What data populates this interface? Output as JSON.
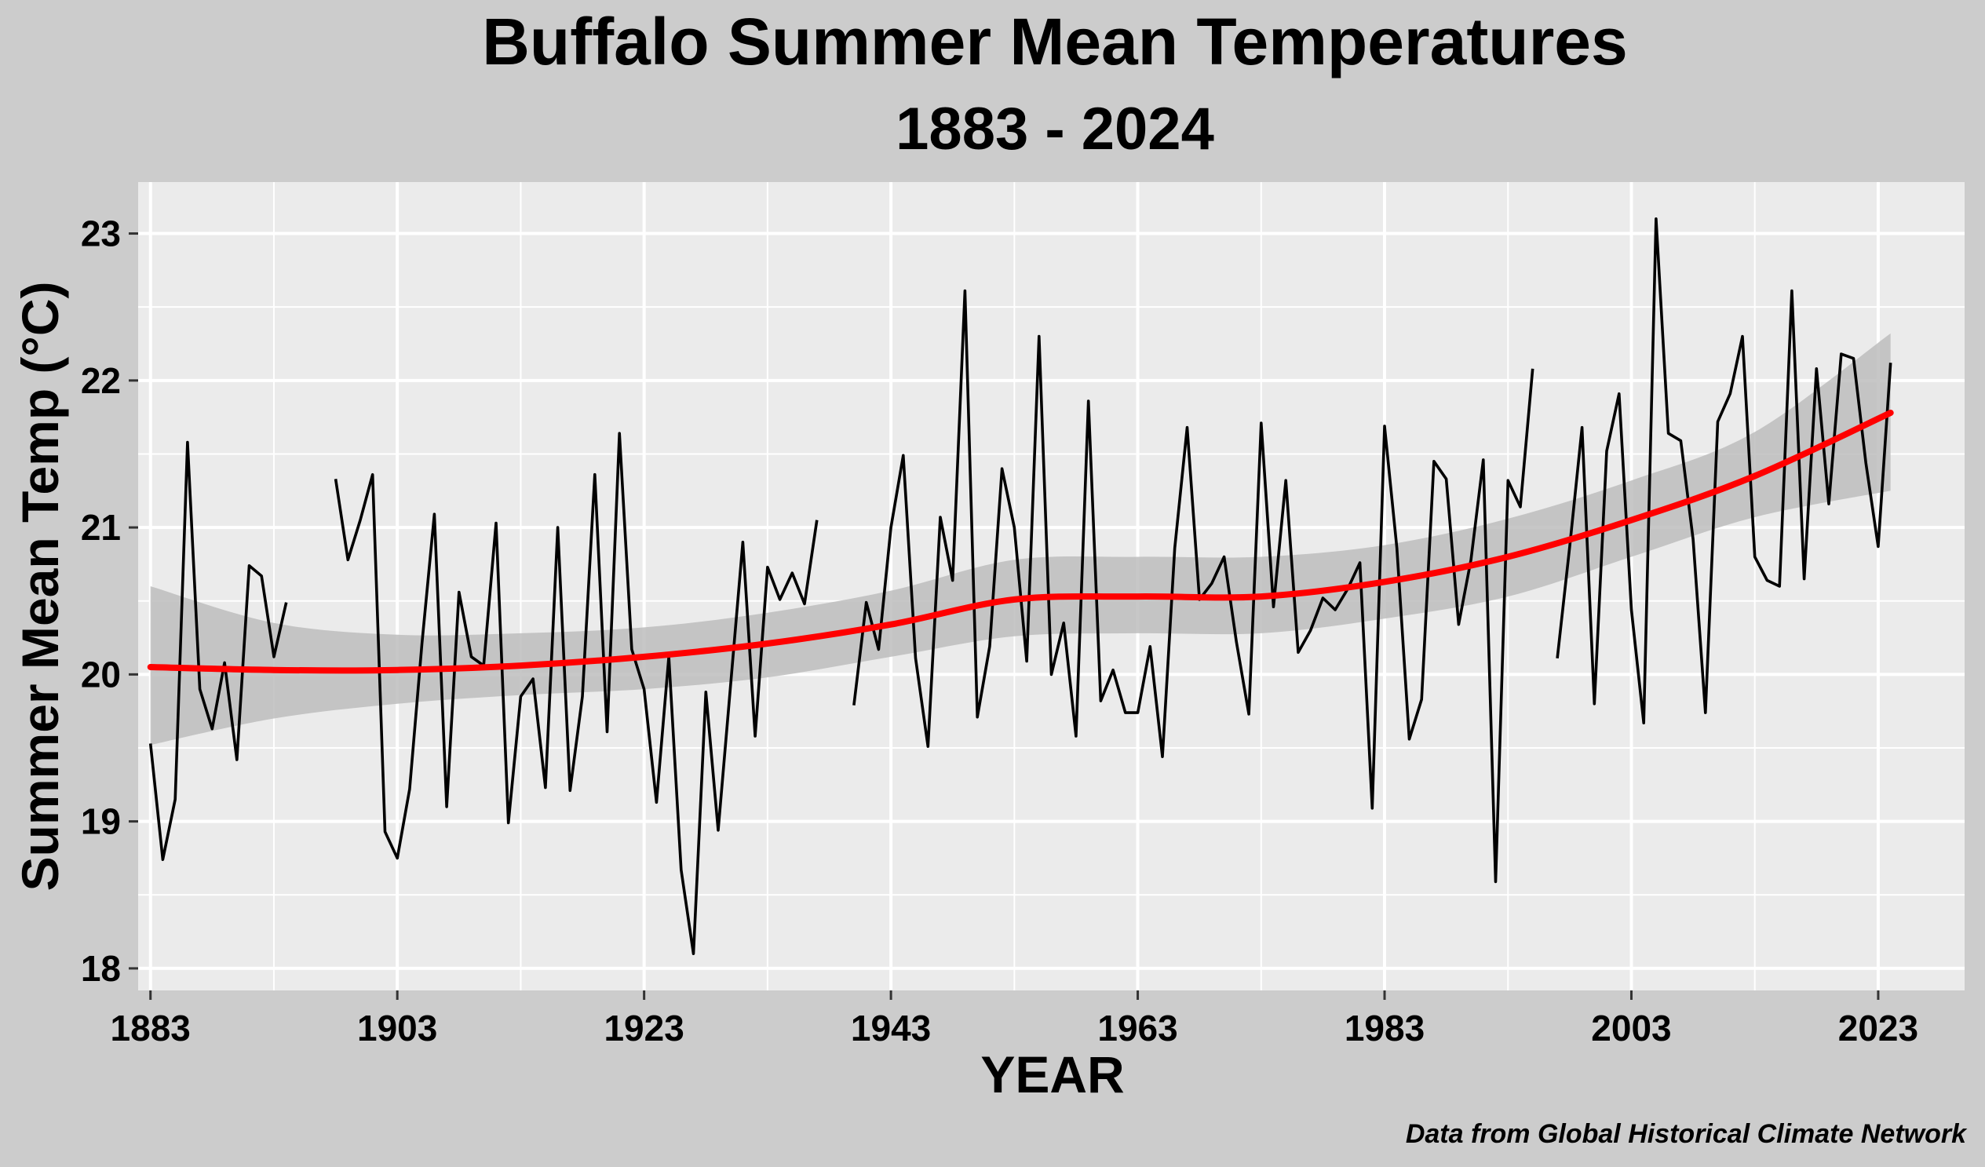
{
  "chart_data": {
    "type": "line",
    "title": "Buffalo Summer Mean Temperatures",
    "subtitle": "1883 - 2024",
    "xlabel": "YEAR",
    "ylabel": "Summer Mean Temp (°C)",
    "caption": "Data from Global Historical Climate Network",
    "xlim": [
      1882,
      2030
    ],
    "ylim": [
      17.85,
      23.35
    ],
    "x_ticks": [
      1883,
      1903,
      1923,
      1943,
      1963,
      1983,
      2003,
      2023
    ],
    "y_ticks": [
      18,
      19,
      20,
      21,
      22,
      23
    ],
    "grid": true,
    "legend": "none",
    "colors": {
      "panel": "#ebebeb",
      "background": "#cccccc",
      "series": "#000000",
      "trend": "#ff0000",
      "band": "#bdbdbd"
    },
    "series": [
      {
        "x": [
          1883,
          1884,
          1885,
          1886,
          1887,
          1888,
          1889,
          1890,
          1891,
          1892,
          1893,
          1894,
          1895,
          1896,
          1897,
          1898,
          1899,
          1900,
          1901,
          1902,
          1903,
          1904,
          1905,
          1906,
          1907,
          1908,
          1909,
          1910,
          1911,
          1912,
          1913,
          1914,
          1915,
          1916,
          1917,
          1918,
          1919,
          1920,
          1921,
          1922,
          1923,
          1924,
          1925,
          1926,
          1927,
          1928,
          1929,
          1930,
          1931,
          1932,
          1933,
          1934,
          1935,
          1936,
          1937,
          1938,
          1939,
          1940,
          1941,
          1942,
          1943,
          1944,
          1945,
          1946,
          1947,
          1948,
          1949,
          1950,
          1951,
          1952,
          1953,
          1954,
          1955,
          1956,
          1957,
          1958,
          1959,
          1960,
          1961,
          1962,
          1963,
          1964,
          1965,
          1966,
          1967,
          1968,
          1969,
          1970,
          1971,
          1972,
          1973,
          1974,
          1975,
          1976,
          1977,
          1978,
          1979,
          1980,
          1981,
          1982,
          1983,
          1984,
          1985,
          1986,
          1987,
          1988,
          1989,
          1990,
          1991,
          1992,
          1993,
          1994,
          1995,
          1996,
          1997,
          1998,
          1999,
          2000,
          2001,
          2002,
          2003,
          2004,
          2005,
          2006,
          2007,
          2008,
          2009,
          2010,
          2011,
          2012,
          2013,
          2014,
          2015,
          2016,
          2017,
          2018,
          2019,
          2020,
          2021,
          2022,
          2023,
          2024
        ],
        "y": [
          19.53,
          18.74,
          19.15,
          21.58,
          19.9,
          19.63,
          20.08,
          19.42,
          20.74,
          20.67,
          20.12,
          20.49,
          null,
          null,
          null,
          21.33,
          20.78,
          21.05,
          21.36,
          18.93,
          18.75,
          19.22,
          20.21,
          21.09,
          19.1,
          20.56,
          20.12,
          20.06,
          21.03,
          18.99,
          19.85,
          19.97,
          19.23,
          21.0,
          19.21,
          19.85,
          21.36,
          19.61,
          21.64,
          20.17,
          19.9,
          19.13,
          20.12,
          18.67,
          18.1,
          19.88,
          18.94,
          19.92,
          20.9,
          19.58,
          20.73,
          20.51,
          20.69,
          20.48,
          21.05,
          null,
          null,
          19.79,
          20.49,
          20.17,
          21.0,
          21.49,
          20.11,
          19.51,
          21.07,
          20.64,
          22.61,
          19.71,
          20.19,
          21.4,
          21.0,
          20.09,
          22.3,
          20.0,
          20.35,
          19.58,
          21.86,
          19.82,
          20.03,
          19.74,
          19.74,
          20.19,
          19.44,
          20.86,
          21.68,
          20.51,
          20.62,
          20.8,
          20.22,
          19.73,
          21.71,
          20.46,
          21.32,
          20.15,
          20.3,
          20.52,
          20.44,
          20.58,
          20.76,
          19.09,
          21.69,
          20.86,
          19.56,
          19.83,
          21.45,
          21.33,
          20.34,
          20.78,
          21.46,
          18.59,
          21.32,
          21.14,
          22.08,
          null,
          20.11,
          20.87,
          21.68,
          19.8,
          21.52,
          21.91,
          20.44,
          19.67,
          23.1,
          21.64,
          21.59,
          20.92,
          19.74,
          21.72,
          21.91,
          22.3,
          20.8,
          20.64,
          20.6,
          22.61,
          20.65,
          22.08,
          21.16,
          22.18,
          22.15,
          21.44,
          20.87,
          22.12
        ]
      }
    ],
    "trend": {
      "x": [
        1883,
        1893,
        1903,
        1913,
        1923,
        1933,
        1943,
        1953,
        1963,
        1973,
        1983,
        1993,
        2003,
        2013,
        2024
      ],
      "y": [
        20.05,
        20.03,
        20.03,
        20.06,
        20.12,
        20.21,
        20.34,
        20.51,
        20.53,
        20.53,
        20.63,
        20.8,
        21.05,
        21.35,
        21.78
      ],
      "lower": [
        19.52,
        19.7,
        19.8,
        19.86,
        19.9,
        19.98,
        20.12,
        20.26,
        20.28,
        20.28,
        20.38,
        20.53,
        20.8,
        21.07,
        21.25
      ],
      "upper": [
        20.6,
        20.35,
        20.27,
        20.28,
        20.32,
        20.42,
        20.57,
        20.78,
        20.8,
        20.8,
        20.88,
        21.06,
        21.32,
        21.65,
        22.32
      ]
    }
  }
}
